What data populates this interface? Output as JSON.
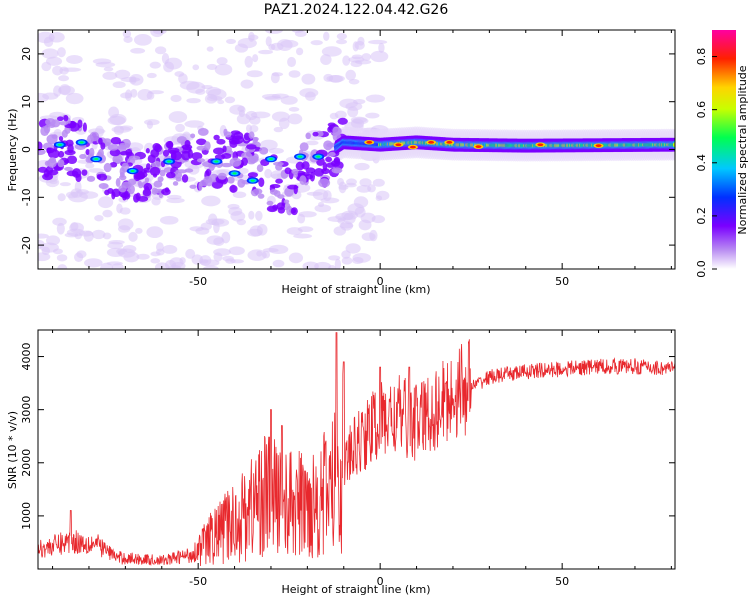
{
  "chart_data": [
    {
      "type": "heatmap",
      "title": "PAZ1.2024.122.04.42.G26",
      "xlabel": "Height of straight line (km)",
      "ylabel": "Frequency (Hz)",
      "xlim": [
        -94,
        81
      ],
      "ylim": [
        -25,
        25
      ],
      "xticks": [
        -50,
        0,
        50
      ],
      "yticks": [
        -20,
        -10,
        0,
        10,
        20
      ],
      "xtick_labels": [
        "-50",
        "0",
        "50"
      ],
      "ytick_labels": [
        "-20",
        "-10",
        "0",
        "10",
        "20"
      ],
      "colorbar": {
        "label": "Normalized spectral amplitude",
        "range": [
          0,
          0.9
        ],
        "ticks": [
          0.0,
          0.2,
          0.4,
          0.6,
          0.8
        ],
        "tick_labels": [
          "0.0",
          "0.2",
          "0.4",
          "0.6",
          "0.8"
        ],
        "colormap": [
          "#ffffff",
          "#b98cf2",
          "#7a00ff",
          "#0030ff",
          "#00c8ff",
          "#00ff50",
          "#c8ff00",
          "#ffd400",
          "#ff2000",
          "#ff00a0"
        ]
      },
      "ridge": [
        {
          "x": -94,
          "f": 0.0
        },
        {
          "x": -85,
          "f": 1.0
        },
        {
          "x": -75,
          "f": -3.5
        },
        {
          "x": -65,
          "f": -5.0
        },
        {
          "x": -55,
          "f": -2.5
        },
        {
          "x": -45,
          "f": -2.0
        },
        {
          "x": -35,
          "f": -2.5
        },
        {
          "x": -25,
          "f": -10.0
        },
        {
          "x": -20,
          "f": -2.0
        },
        {
          "x": -15,
          "f": -1.0
        },
        {
          "x": -10,
          "f": 1.5
        },
        {
          "x": 0,
          "f": 1.0
        },
        {
          "x": 10,
          "f": 1.5
        },
        {
          "x": 20,
          "f": 1.0
        },
        {
          "x": 40,
          "f": 0.8
        },
        {
          "x": 81,
          "f": 1.0
        }
      ],
      "grid": false
    },
    {
      "type": "line",
      "xlabel": "Height of straight line (km)",
      "ylabel": "SNR (10 * v/v)",
      "xlim": [
        -94,
        81
      ],
      "ylim": [
        0,
        4500
      ],
      "xticks": [
        -50,
        0,
        50
      ],
      "yticks": [
        1000,
        2000,
        3000,
        4000
      ],
      "xtick_labels": [
        "-50",
        "0",
        "50"
      ],
      "ytick_labels": [
        "1000",
        "2000",
        "3000",
        "4000"
      ],
      "line_color": "#e8282d",
      "envelope": [
        {
          "x": -94,
          "y": 350
        },
        {
          "x": -85,
          "y": 500
        },
        {
          "x": -78,
          "y": 450
        },
        {
          "x": -72,
          "y": 200
        },
        {
          "x": -60,
          "y": 150
        },
        {
          "x": -52,
          "y": 250
        },
        {
          "x": -45,
          "y": 600
        },
        {
          "x": -38,
          "y": 900
        },
        {
          "x": -32,
          "y": 1300
        },
        {
          "x": -25,
          "y": 1100
        },
        {
          "x": -20,
          "y": 1100
        },
        {
          "x": -15,
          "y": 1300
        },
        {
          "x": -12,
          "y": 1500
        },
        {
          "x": -10,
          "y": 1900
        },
        {
          "x": -5,
          "y": 2400
        },
        {
          "x": 0,
          "y": 2700
        },
        {
          "x": 5,
          "y": 2800
        },
        {
          "x": 10,
          "y": 2700
        },
        {
          "x": 15,
          "y": 2900
        },
        {
          "x": 20,
          "y": 3200
        },
        {
          "x": 25,
          "y": 3400
        },
        {
          "x": 30,
          "y": 3600
        },
        {
          "x": 40,
          "y": 3700
        },
        {
          "x": 50,
          "y": 3750
        },
        {
          "x": 60,
          "y": 3800
        },
        {
          "x": 70,
          "y": 3800
        },
        {
          "x": 81,
          "y": 3750
        }
      ],
      "peaks": [
        {
          "x": -85,
          "y": 1100
        },
        {
          "x": -30,
          "y": 3000
        },
        {
          "x": -27,
          "y": 2700
        },
        {
          "x": -12,
          "y": 4450
        },
        {
          "x": -10,
          "y": 3900
        },
        {
          "x": 0,
          "y": 3800
        },
        {
          "x": 8,
          "y": 3800
        },
        {
          "x": 18,
          "y": 3500
        }
      ],
      "grid": false
    }
  ]
}
